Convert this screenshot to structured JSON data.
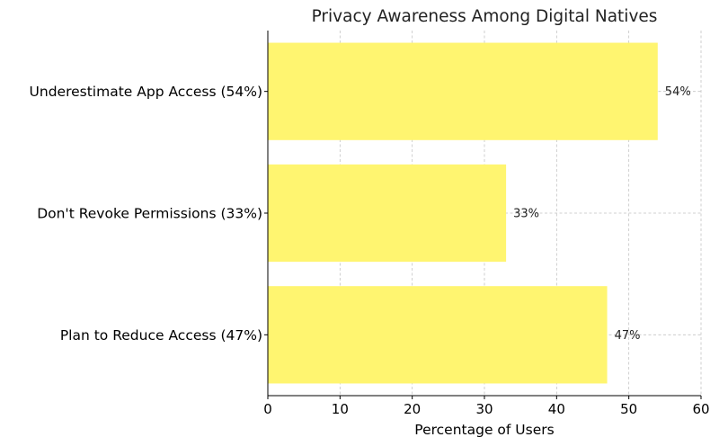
{
  "chart_data": {
    "type": "bar",
    "orientation": "horizontal",
    "title": "Privacy Awareness Among Digital Natives",
    "xlabel": "Percentage of Users",
    "ylabel": "",
    "categories": [
      "Underestimate App Access (54%)",
      "Don't Revoke Permissions (33%)",
      "Plan to Reduce Access (47%)"
    ],
    "values": [
      54,
      33,
      47
    ],
    "value_labels": [
      "54%",
      "33%",
      "47%"
    ],
    "xlim": [
      0,
      60
    ],
    "xticks": [
      0,
      10,
      20,
      30,
      40,
      50,
      60
    ],
    "grid": true,
    "bar_color": "#fff570"
  }
}
